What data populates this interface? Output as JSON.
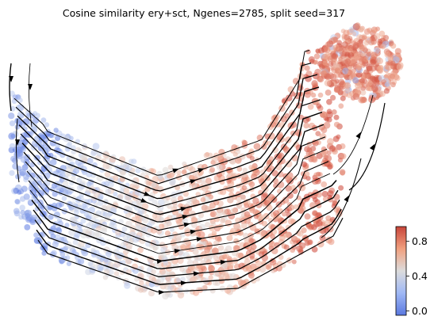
{
  "chart_data": {
    "type": "scatter",
    "title": "Cosine similarity ery+sct, Ngenes=2785, split seed=317",
    "xlabel": "",
    "ylabel": "",
    "axes_visible": false,
    "overlay": "velocity streamlines with arrowheads",
    "colormap": "coolwarm",
    "color_low": "#3b4cc0",
    "color_mid": "#dddcdc",
    "color_high": "#b40426",
    "colorbar": {
      "label": "",
      "vmin": -0.05,
      "vmax": 0.97,
      "ticks": [
        0.0,
        0.4,
        0.8
      ],
      "tick_labels": [
        "0.0",
        "0.4",
        "0.8"
      ],
      "placement": "bottom-right"
    }
  }
}
